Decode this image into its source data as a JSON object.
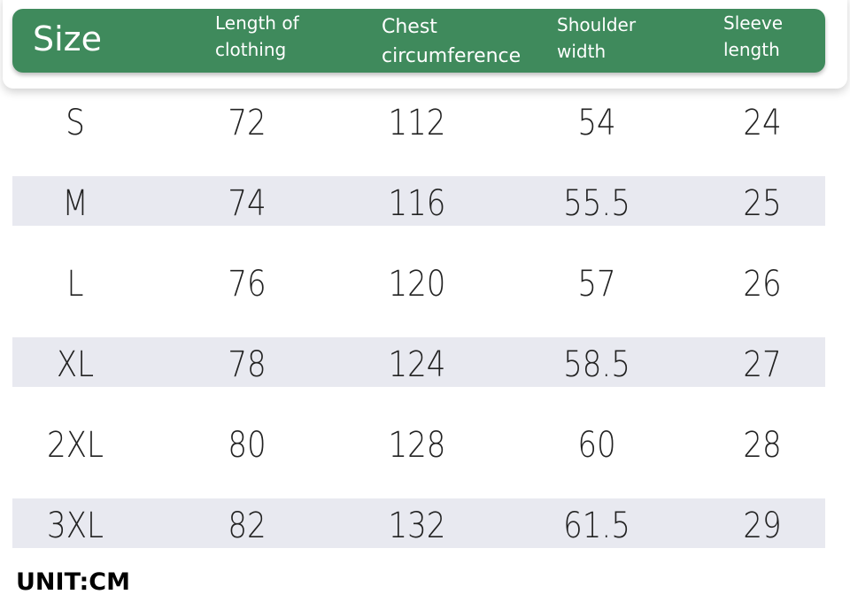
{
  "table": {
    "header": [
      "Size",
      "Length of clothing",
      "Chest circumference",
      "Shoulder width",
      "Sleeve length"
    ],
    "rows": [
      [
        "S",
        72,
        112,
        54,
        24
      ],
      [
        "M",
        74,
        116,
        55.5,
        25
      ],
      [
        "L",
        76,
        120,
        57,
        26
      ],
      [
        "XL",
        78,
        124,
        58.5,
        27
      ],
      [
        "2XL",
        80,
        128,
        60,
        28
      ],
      [
        "3XL",
        82,
        132,
        61.5,
        29
      ]
    ]
  },
  "footer": "UNIT:CM"
}
